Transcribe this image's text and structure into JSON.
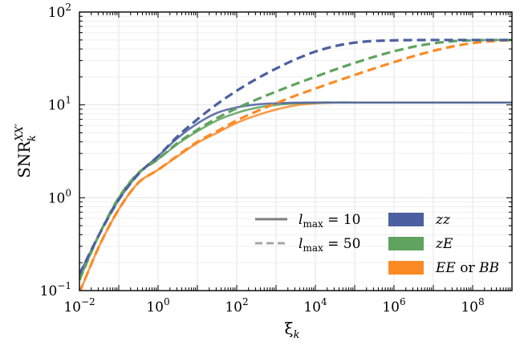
{
  "chart_data": {
    "type": "line",
    "title": "",
    "xlabel": "ξ",
    "xlabel_sub": "k",
    "ylabel": "SNR",
    "ylabel_sup": "XX′",
    "ylabel_sub": "k",
    "xscale": "log",
    "yscale": "log",
    "xlim": [
      0.01,
      1000000000
    ],
    "ylim": [
      0.1,
      100
    ],
    "grid": true,
    "x_ticks": [
      {
        "value": 0.01,
        "base": "10",
        "exp": "−2"
      },
      {
        "value": 1,
        "base": "10",
        "exp": "0"
      },
      {
        "value": 100,
        "base": "10",
        "exp": "2"
      },
      {
        "value": 10000,
        "base": "10",
        "exp": "4"
      },
      {
        "value": 1000000,
        "base": "10",
        "exp": "6"
      },
      {
        "value": 100000000,
        "base": "10",
        "exp": "8"
      }
    ],
    "y_ticks": [
      {
        "value": 0.1,
        "base": "10",
        "exp": "−1"
      },
      {
        "value": 1,
        "base": "10",
        "exp": "0"
      },
      {
        "value": 10,
        "base": "10",
        "exp": "1"
      },
      {
        "value": 100,
        "base": "10",
        "exp": "2"
      }
    ],
    "colors": {
      "zz": "#4c5fa0",
      "zE": "#5fa35f",
      "EE": "#fb8a25",
      "gray_solid": "#7f7f7f",
      "gray_dashed": "#a6a6a6"
    },
    "legend": {
      "position": "bottom-right",
      "linestyles": [
        {
          "style": "solid",
          "label_var": "l",
          "label_sub": "max",
          "label_rest": " = 10"
        },
        {
          "style": "dashed",
          "label_var": "l",
          "label_sub": "max",
          "label_rest": " = 50"
        }
      ],
      "colors": [
        {
          "color_key": "zz",
          "label": "zz"
        },
        {
          "color_key": "zE",
          "label": "zE"
        },
        {
          "color_key": "EE",
          "label_a": "EE",
          "label_mid": " or ",
          "label_b": "BB"
        }
      ]
    },
    "x": [
      0.01,
      0.0316,
      0.1,
      0.316,
      1,
      3.16,
      10,
      31.6,
      100,
      316,
      1000,
      3160,
      10000,
      31600,
      100000,
      316000,
      1000000,
      3160000,
      10000000,
      31600000,
      100000000,
      316000000,
      1000000000
    ],
    "series": [
      {
        "name": "zz",
        "linestyle": "solid",
        "color_key": "zz",
        "values": [
          0.15,
          0.4,
          0.95,
          1.8,
          2.8,
          4.4,
          6.3,
          8.2,
          9.4,
          10.1,
          10.4,
          10.55,
          10.6,
          10.6,
          10.6,
          10.6,
          10.6,
          10.6,
          10.6,
          10.6,
          10.6,
          10.6,
          10.6
        ]
      },
      {
        "name": "zE",
        "linestyle": "solid",
        "color_key": "zE",
        "values": [
          0.13,
          0.4,
          1.0,
          1.85,
          2.6,
          3.8,
          5.2,
          6.8,
          8.2,
          9.3,
          10.0,
          10.4,
          10.55,
          10.6,
          10.6,
          10.6,
          10.6,
          10.6,
          10.6,
          10.6,
          10.6,
          10.6,
          10.6
        ]
      },
      {
        "name": "EE or BB",
        "linestyle": "solid",
        "color_key": "EE",
        "values": [
          0.095,
          0.3,
          0.75,
          1.45,
          2.0,
          2.8,
          3.9,
          5.0,
          6.4,
          7.7,
          8.9,
          9.9,
          10.4,
          10.6,
          10.6,
          10.6,
          10.6,
          10.6,
          10.6,
          10.6,
          10.6,
          10.6,
          10.6
        ]
      },
      {
        "name": "zz",
        "linestyle": "dashed",
        "color_key": "zz",
        "values": [
          0.15,
          0.4,
          0.95,
          1.8,
          2.8,
          4.6,
          7.0,
          10.2,
          14.2,
          19.0,
          24.6,
          31.0,
          37.5,
          43.0,
          46.8,
          48.8,
          49.6,
          49.9,
          50.0,
          50.0,
          50.0,
          50.0,
          50.0
        ]
      },
      {
        "name": "zE",
        "linestyle": "dashed",
        "color_key": "zE",
        "values": [
          0.13,
          0.4,
          1.0,
          1.85,
          2.6,
          3.9,
          5.4,
          7.2,
          9.2,
          11.4,
          13.9,
          16.8,
          20.1,
          24.0,
          28.3,
          33.0,
          37.8,
          42.3,
          46.0,
          48.5,
          49.6,
          50.0,
          50.0
        ]
      },
      {
        "name": "EE or BB",
        "linestyle": "dashed",
        "color_key": "EE",
        "values": [
          0.095,
          0.3,
          0.75,
          1.45,
          2.0,
          2.85,
          4.0,
          5.2,
          6.8,
          8.5,
          10.4,
          12.6,
          15.0,
          17.8,
          21.0,
          24.7,
          28.9,
          33.5,
          38.2,
          42.7,
          46.3,
          48.6,
          49.8
        ]
      }
    ]
  }
}
